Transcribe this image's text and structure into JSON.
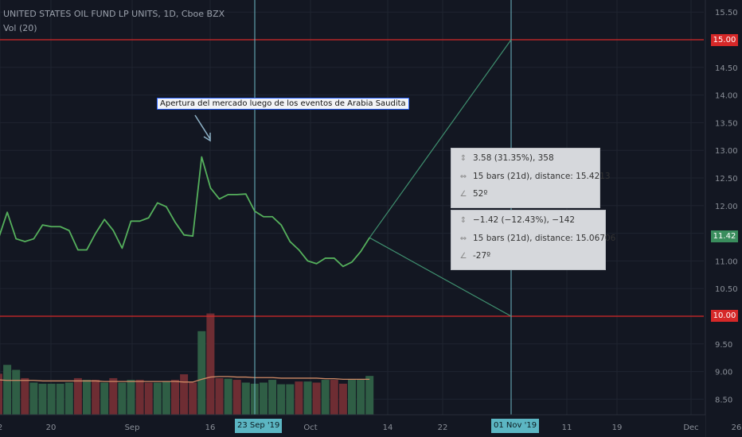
{
  "header": {
    "symbol_line": "UNITED STATES OIL FUND LP UNITS, 1D, Cboe BZX",
    "volume_line": "Vol (20)"
  },
  "colors": {
    "background": "#131722",
    "grid": "#1f2430",
    "price_line": "#55b05c",
    "volume_up": "#2f5e45",
    "volume_down": "#6e2d33",
    "volume_ma": "#d08a66",
    "horizontal_level": "#d62828",
    "vertical_marker": "#6fb8c5",
    "projection": "#3f8f6f",
    "price_tag": "#3a8d5d"
  },
  "annotation": {
    "text": "Apertura del mercado luego de los eventos de Arabia Saudita",
    "arrow_icon": "arrow-down-right-icon"
  },
  "measure_boxes": [
    {
      "rows": [
        {
          "icon": "price-range-icon",
          "text": "3.58 (31.35%), 358"
        },
        {
          "icon": "bars-range-icon",
          "text": "15 bars (21d), distance: 15.4213"
        },
        {
          "icon": "angle-icon",
          "text": "52º"
        }
      ]
    },
    {
      "rows": [
        {
          "icon": "price-range-icon",
          "text": "−1.42 (−12.43%), −142"
        },
        {
          "icon": "bars-range-icon",
          "text": "15 bars (21d), distance: 15.06706"
        },
        {
          "icon": "angle-icon",
          "text": "-27º"
        }
      ]
    }
  ],
  "price_tags": {
    "level_high": "15.00",
    "level_low": "10.00",
    "last": "11.42"
  },
  "time_tags": {
    "left": "23 Sep '19",
    "right": "01 Nov '19"
  },
  "chart_data": {
    "type": "line",
    "title": "UNITED STATES OIL FUND LP UNITS, 1D, Cboe BZX",
    "y_axis": {
      "ticks": [
        "15.50",
        "15.00",
        "14.50",
        "14.00",
        "13.50",
        "13.00",
        "12.50",
        "12.00",
        "11.50",
        "11.00",
        "10.50",
        "10.00",
        "9.50",
        "9.00",
        "8.50"
      ],
      "ylim": [
        8.3,
        15.6
      ]
    },
    "x_axis": {
      "ticks": [
        "2",
        "20",
        "Sep",
        "16",
        "23 Sep '19",
        "Oct",
        "14",
        "22",
        "01 Nov '19",
        "11",
        "19",
        "Dec",
        "26"
      ]
    },
    "grid": true,
    "horizontal_levels": [
      15.0,
      10.0
    ],
    "vertical_markers": [
      "23 Sep '19",
      "01 Nov '19"
    ],
    "series": [
      {
        "style": "line",
        "values": [
          11.4,
          11.88,
          11.4,
          11.35,
          11.4,
          11.65,
          11.62,
          11.62,
          11.55,
          11.2,
          11.2,
          11.5,
          11.75,
          11.55,
          11.23,
          11.72,
          11.72,
          11.78,
          12.05,
          11.98,
          11.7,
          11.47,
          11.45,
          12.88,
          12.32,
          12.12,
          12.2,
          12.2,
          12.21,
          11.9,
          11.8,
          11.8,
          11.65,
          11.35,
          11.2,
          11.0,
          10.95,
          11.05,
          11.05,
          10.9,
          10.98,
          11.17,
          11.42
        ]
      },
      {
        "style": "volume",
        "values": [
          8.96,
          9.12,
          9.03,
          8.88,
          8.8,
          8.78,
          8.78,
          8.78,
          8.8,
          8.88,
          8.85,
          8.85,
          8.8,
          8.88,
          8.8,
          8.85,
          8.85,
          8.8,
          8.8,
          8.82,
          8.85,
          8.95,
          8.8,
          9.73,
          10.05,
          8.88,
          8.87,
          8.85,
          8.8,
          8.78,
          8.8,
          8.85,
          8.77,
          8.77,
          8.82,
          8.82,
          8.8,
          8.85,
          8.85,
          8.78,
          8.85,
          8.85,
          8.92
        ]
      },
      {
        "style": "volume_ma",
        "values": [
          8.85,
          8.84,
          8.84,
          8.84,
          8.84,
          8.83,
          8.83,
          8.83,
          8.83,
          8.83,
          8.83,
          8.83,
          8.82,
          8.82,
          8.82,
          8.82,
          8.82,
          8.82,
          8.82,
          8.82,
          8.82,
          8.81,
          8.81,
          8.86,
          8.9,
          8.91,
          8.91,
          8.9,
          8.9,
          8.89,
          8.89,
          8.89,
          8.88,
          8.88,
          8.88,
          8.88,
          8.88,
          8.87,
          8.87,
          8.86,
          8.86,
          8.86,
          8.86
        ]
      }
    ],
    "volume_directions": [
      "d",
      "u",
      "u",
      "d",
      "u",
      "u",
      "u",
      "u",
      "u",
      "d",
      "u",
      "d",
      "u",
      "d",
      "u",
      "u",
      "d",
      "d",
      "u",
      "u",
      "d",
      "d",
      "d",
      "u",
      "d",
      "d",
      "u",
      "d",
      "u",
      "u",
      "u",
      "u",
      "u",
      "u",
      "d",
      "u",
      "d",
      "u",
      "d",
      "d",
      "u",
      "u",
      "u"
    ],
    "projections": [
      {
        "from_bar": 42,
        "from_value": 11.42,
        "to_date": "01 Nov '19",
        "to_value": 15.0
      },
      {
        "from_bar": 42,
        "from_value": 11.42,
        "to_date": "01 Nov '19",
        "to_value": 10.0
      }
    ]
  }
}
